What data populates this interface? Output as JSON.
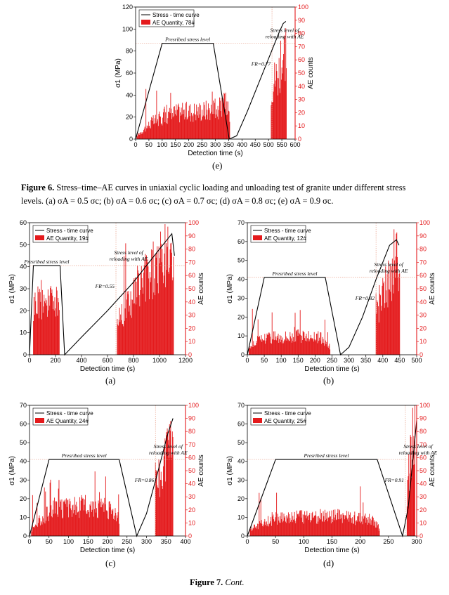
{
  "panel_labels": {
    "e": "(e)",
    "a": "(a)",
    "b": "(b)",
    "c": "(c)",
    "d": "(d)"
  },
  "figure6": {
    "label": "Figure 6.",
    "text": "Stress–time–AE curves in uniaxial cyclic loading and unloading test of granite under different stress levels. (a) σA = 0.5 σc; (b) σA = 0.6 σc; (c) σA = 0.7 σc; (d) σA = 0.8 σc; (e) σA = 0.9 σc."
  },
  "figure7": {
    "label": "Figure 7.",
    "text": "Cont."
  },
  "colors": {
    "stress": "#000000",
    "ae": "#e41a1c",
    "ref_line": "#e8a08a"
  },
  "chart_data": [
    {
      "id": "e",
      "type": "line+bar",
      "xlabel": "Detection time (s)",
      "ylabel": "σ1 (MPa)",
      "y2label": "AE counts",
      "xlim": [
        0,
        600
      ],
      "ylim": [
        0,
        120
      ],
      "y2lim": [
        0,
        100
      ],
      "xticks": [
        0,
        50,
        100,
        150,
        200,
        250,
        300,
        350,
        400,
        450,
        500,
        550,
        600
      ],
      "yticks": [
        0,
        20,
        40,
        60,
        80,
        100,
        120
      ],
      "y2ticks": [
        0,
        10,
        20,
        30,
        40,
        50,
        60,
        70,
        80,
        90,
        100
      ],
      "legend": [
        "Stress - time curve",
        "AE Quantity, 78#"
      ],
      "annotations": {
        "prescribed": "Presribed stress level",
        "reload1": "Stress level of",
        "reload2": "reloading with AE",
        "fr": "FR=0.77"
      },
      "stress_curve": [
        [
          0,
          0
        ],
        [
          100,
          87
        ],
        [
          292,
          87
        ],
        [
          352,
          0
        ],
        [
          380,
          3
        ],
        [
          420,
          25
        ],
        [
          470,
          55
        ],
        [
          515,
          82
        ],
        [
          540,
          97
        ],
        [
          555,
          105
        ],
        [
          565,
          107
        ]
      ],
      "prescribed_level": 87,
      "ref_x": 513,
      "ae_segments": [
        {
          "x": [
            5,
            355
          ],
          "envelope": [
            [
              5,
              3
            ],
            [
              30,
              8
            ],
            [
              60,
              14
            ],
            [
              100,
              18
            ],
            [
              150,
              22
            ],
            [
              250,
              24
            ],
            [
              320,
              26
            ],
            [
              340,
              30
            ],
            [
              355,
              22
            ]
          ],
          "peak": 38
        },
        {
          "x": [
            510,
            568
          ],
          "envelope": [
            [
              510,
              45
            ],
            [
              525,
              52
            ],
            [
              545,
              60
            ],
            [
              560,
              75
            ],
            [
              568,
              80
            ]
          ],
          "peak": 100
        }
      ]
    },
    {
      "id": "a",
      "type": "line+bar",
      "xlabel": "Detection time (s)",
      "ylabel": "σ1 (MPa)",
      "y2label": "AE counts",
      "xlim": [
        0,
        1200
      ],
      "ylim": [
        0,
        60
      ],
      "y2lim": [
        0,
        100
      ],
      "xticks": [
        0,
        200,
        400,
        600,
        800,
        1000,
        1200
      ],
      "yticks": [
        0,
        10,
        20,
        30,
        40,
        50,
        60
      ],
      "y2ticks": [
        0,
        10,
        20,
        30,
        40,
        50,
        60,
        70,
        80,
        90,
        100
      ],
      "legend": [
        "Stress - time curve",
        "AE Quantity, 19#"
      ],
      "annotations": {
        "prescribed": "Presribed stress level",
        "reload1": "Stress level of",
        "reload2": "reloading with AE",
        "fr": "FR=0.55"
      },
      "stress_curve": [
        [
          0,
          0
        ],
        [
          30,
          40.5
        ],
        [
          235,
          40.5
        ],
        [
          270,
          0
        ],
        [
          400,
          8
        ],
        [
          600,
          20
        ],
        [
          800,
          33
        ],
        [
          1000,
          48
        ],
        [
          1095,
          55
        ],
        [
          1115,
          45
        ]
      ],
      "prescribed_level": 40.5,
      "ref_x": 665,
      "ae_segments": [
        {
          "x": [
            30,
            230
          ],
          "envelope": [
            [
              30,
              40
            ],
            [
              50,
              45
            ],
            [
              120,
              47
            ],
            [
              200,
              46
            ],
            [
              230,
              43
            ]
          ],
          "peak": 52
        },
        {
          "x": [
            675,
            1110
          ],
          "envelope": [
            [
              675,
              28
            ],
            [
              750,
              42
            ],
            [
              850,
              58
            ],
            [
              950,
              72
            ],
            [
              1050,
              80
            ],
            [
              1110,
              82
            ]
          ],
          "peak": 100
        }
      ]
    },
    {
      "id": "b",
      "type": "line+bar",
      "xlabel": "Detection time (s)",
      "ylabel": "σ1 (MPa)",
      "y2label": "AE counts",
      "xlim": [
        0,
        500
      ],
      "ylim": [
        0,
        70
      ],
      "y2lim": [
        0,
        100
      ],
      "xticks": [
        0,
        50,
        100,
        150,
        200,
        250,
        300,
        350,
        400,
        450,
        500
      ],
      "yticks": [
        0,
        10,
        20,
        30,
        40,
        50,
        60,
        70
      ],
      "y2ticks": [
        0,
        10,
        20,
        30,
        40,
        50,
        60,
        70,
        80,
        90,
        100
      ],
      "legend": [
        "Stress - time curve",
        "AE Quantity, 12#"
      ],
      "annotations": {
        "prescribed": "Presribed stress level",
        "reload1": "Stress level of",
        "reload2": "reloading with AE",
        "fr": "FR=0.82"
      },
      "stress_curve": [
        [
          0,
          0
        ],
        [
          50,
          41
        ],
        [
          230,
          41
        ],
        [
          275,
          0
        ],
        [
          300,
          4
        ],
        [
          340,
          20
        ],
        [
          380,
          40
        ],
        [
          420,
          58
        ],
        [
          440,
          61
        ],
        [
          448,
          58
        ]
      ],
      "prescribed_level": 41,
      "ref_x": 380,
      "ae_segments": [
        {
          "x": [
            5,
            245
          ],
          "envelope": [
            [
              5,
              6
            ],
            [
              30,
              12
            ],
            [
              60,
              15
            ],
            [
              150,
              16
            ],
            [
              220,
              14
            ],
            [
              245,
              6
            ]
          ],
          "peak": 38
        },
        {
          "x": [
            380,
            450
          ],
          "envelope": [
            [
              380,
              40
            ],
            [
              400,
              50
            ],
            [
              420,
              60
            ],
            [
              440,
              85
            ],
            [
              450,
              65
            ]
          ],
          "peak": 100
        }
      ]
    },
    {
      "id": "c",
      "type": "line+bar",
      "xlabel": "Detection time (s)",
      "ylabel": "σ1 (MPa)",
      "y2label": "AE counts",
      "xlim": [
        0,
        400
      ],
      "ylim": [
        0,
        70
      ],
      "y2lim": [
        0,
        100
      ],
      "xticks": [
        0,
        50,
        100,
        150,
        200,
        250,
        300,
        350,
        400
      ],
      "yticks": [
        0,
        10,
        20,
        30,
        40,
        50,
        60,
        70
      ],
      "y2ticks": [
        0,
        10,
        20,
        30,
        40,
        50,
        60,
        70,
        80,
        90,
        100
      ],
      "legend": [
        "Stress - time curve",
        "AE Quantity, 24#"
      ],
      "annotations": {
        "prescribed": "Presribed stress level",
        "reload1": "Stress level of",
        "reload2": "reloading with AE",
        "fr": "FR=0.86"
      },
      "stress_curve": [
        [
          0,
          0
        ],
        [
          50,
          41
        ],
        [
          230,
          41
        ],
        [
          275,
          0
        ],
        [
          300,
          12
        ],
        [
          330,
          35
        ],
        [
          355,
          55
        ],
        [
          368,
          63
        ]
      ],
      "prescribed_level": 41,
      "ref_x": 323,
      "ae_segments": [
        {
          "x": [
            5,
            230
          ],
          "envelope": [
            [
              5,
              5
            ],
            [
              30,
              15
            ],
            [
              60,
              22
            ],
            [
              150,
              26
            ],
            [
              220,
              22
            ],
            [
              230,
              12
            ]
          ],
          "peak": 50
        },
        {
          "x": [
            323,
            368
          ],
          "envelope": [
            [
              323,
              45
            ],
            [
              340,
              55
            ],
            [
              355,
              70
            ],
            [
              368,
              85
            ]
          ],
          "peak": 100
        }
      ]
    },
    {
      "id": "d",
      "type": "line+bar",
      "xlabel": "Detection time (s)",
      "ylabel": "σ1 (MPa)",
      "y2label": "AE counts",
      "xlim": [
        0,
        300
      ],
      "ylim": [
        0,
        70
      ],
      "y2lim": [
        0,
        100
      ],
      "xticks": [
        0,
        50,
        100,
        150,
        200,
        250,
        300
      ],
      "yticks": [
        0,
        10,
        20,
        30,
        40,
        50,
        60,
        70
      ],
      "y2ticks": [
        0,
        10,
        20,
        30,
        40,
        50,
        60,
        70,
        80,
        90,
        100
      ],
      "legend": [
        "Stress - time curve",
        "AE Quantity, 25#"
      ],
      "annotations": {
        "prescribed": "Presribed stress level",
        "reload1": "Stress level of",
        "reload2": "reloading with AE",
        "fr": "FR=0.91"
      },
      "stress_curve": [
        [
          0,
          0
        ],
        [
          50,
          41
        ],
        [
          230,
          41
        ],
        [
          275,
          0
        ],
        [
          285,
          15
        ],
        [
          293,
          40
        ],
        [
          300,
          62
        ]
      ],
      "prescribed_level": 41,
      "ref_x": 280,
      "ae_segments": [
        {
          "x": [
            5,
            235
          ],
          "envelope": [
            [
              5,
              5
            ],
            [
              30,
              12
            ],
            [
              60,
              16
            ],
            [
              150,
              17
            ],
            [
              220,
              14
            ],
            [
              235,
              6
            ]
          ],
          "peak": 40
        },
        {
          "x": [
            283,
            297
          ],
          "envelope": [
            [
              283,
              40
            ],
            [
              290,
              70
            ],
            [
              297,
              90
            ]
          ],
          "peak": 100
        }
      ]
    }
  ]
}
